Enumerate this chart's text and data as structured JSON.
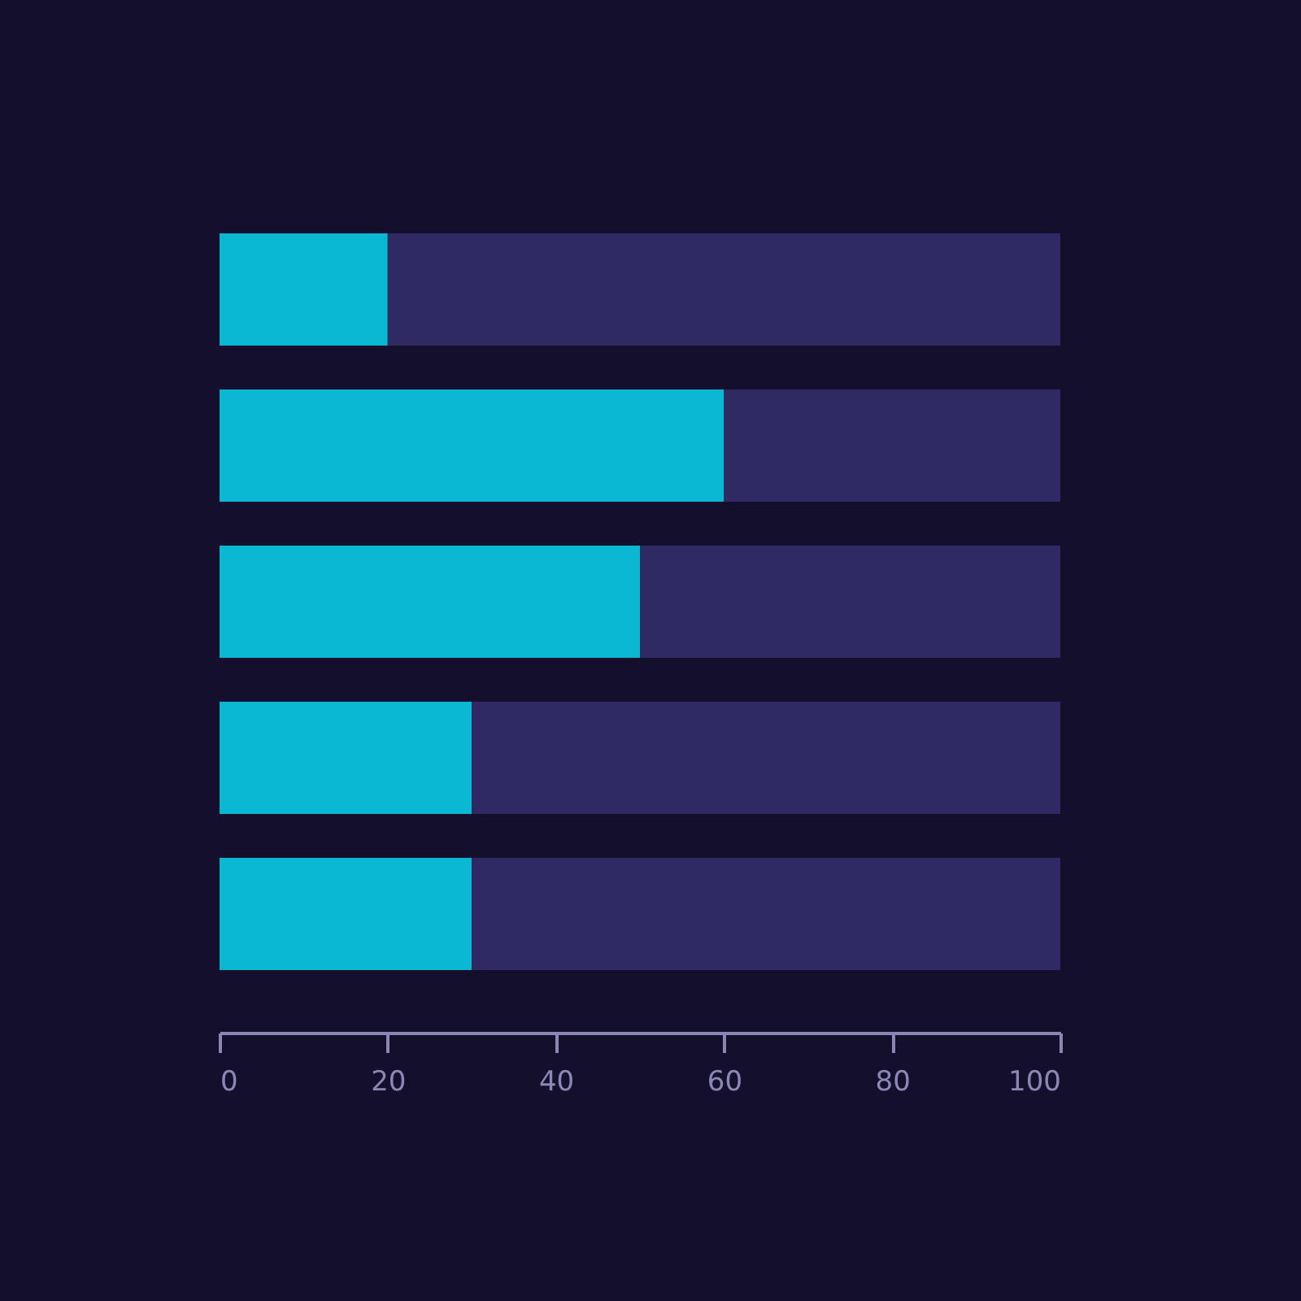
{
  "chart_data": {
    "type": "bar",
    "orientation": "horizontal",
    "stacked": true,
    "categories": [
      null,
      null,
      null,
      null,
      null
    ],
    "series": [
      {
        "color": "#0bb8d4",
        "values": [
          20,
          60,
          50,
          30,
          30
        ]
      },
      {
        "color": "#2f2a63",
        "values": [
          80,
          40,
          50,
          70,
          70
        ]
      }
    ],
    "xlim": [
      0,
      100
    ],
    "xticks": [
      0,
      20,
      40,
      60,
      80,
      100
    ],
    "grid": false,
    "legend": false
  }
}
